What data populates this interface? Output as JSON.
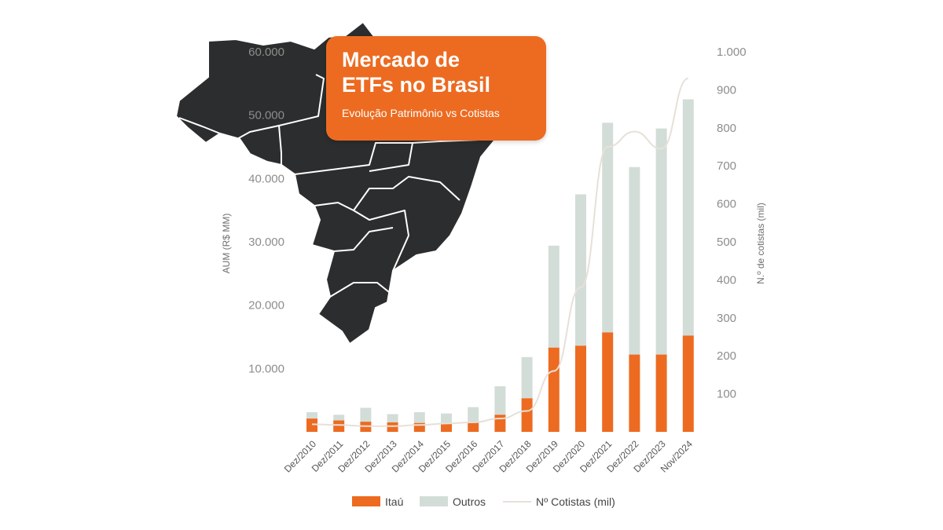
{
  "header": {
    "title_line1": "Mercado de",
    "title_line2": "ETFs no Brasil",
    "subtitle": "Evolução Patrimônio vs Cotistas"
  },
  "colors": {
    "itau": "#ec6b21",
    "outros": "#d3ddd8",
    "cotistas": "#e8e0d8",
    "map": "#2c2d2e",
    "card": "#ec6b21"
  },
  "legend": {
    "itau": "Itaú",
    "outros": "Outros",
    "cotistas": "Nº Cotistas (mil)"
  },
  "chart_data": {
    "type": "bar",
    "stacked": true,
    "categories": [
      "Dez/2010",
      "Dez/2011",
      "Dez/2012",
      "Dez/2013",
      "Dez/2014",
      "Dez/2015",
      "Dez/2016",
      "Dez/2017",
      "Dez/2018",
      "Dez/2019",
      "Dez/2020",
      "Dez/2021",
      "Dez/2022",
      "Dez/2023",
      "Nov/2024"
    ],
    "series": [
      {
        "name": "Itaú",
        "axis": "left",
        "values": [
          2100,
          1800,
          1600,
          1500,
          1400,
          1300,
          1500,
          2700,
          5300,
          13300,
          13600,
          15700,
          12200,
          12200,
          15200
        ]
      },
      {
        "name": "Outros",
        "axis": "left",
        "values": [
          1000,
          900,
          2200,
          1300,
          1700,
          1600,
          2400,
          4500,
          6500,
          16100,
          23900,
          33100,
          29600,
          35700,
          37300
        ]
      },
      {
        "name": "Nº Cotistas (mil)",
        "axis": "right",
        "type": "line",
        "values": [
          20,
          18,
          15,
          15,
          18,
          22,
          25,
          35,
          55,
          160,
          380,
          750,
          790,
          745,
          930
        ]
      }
    ],
    "ylabel": "AUM (R$ MM)",
    "ylim": [
      0,
      60000
    ],
    "yticks": [
      "10.000",
      "20.000",
      "30.000",
      "40.000",
      "50.000",
      "60.000"
    ],
    "y2label": "N.º de cotistas (mil)",
    "y2lim": [
      0,
      1000
    ],
    "y2ticks": [
      "100",
      "200",
      "300",
      "400",
      "500",
      "600",
      "700",
      "800",
      "900",
      "1.000"
    ],
    "legend_position": "bottom",
    "grid": false
  }
}
